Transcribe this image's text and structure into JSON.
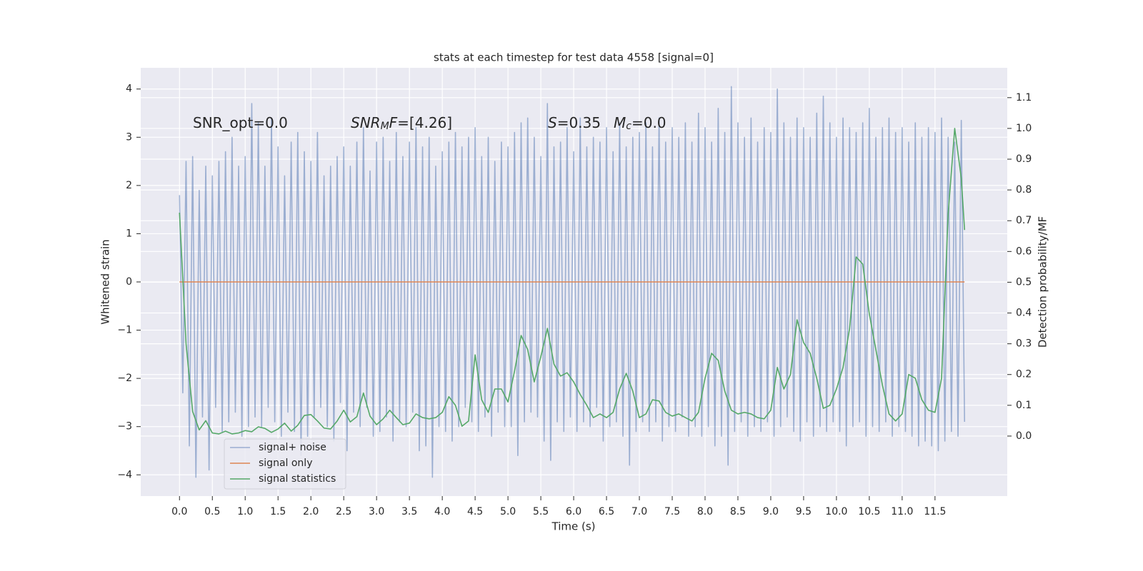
{
  "chart_data": {
    "type": "line",
    "title": "stats at each timestep for test data 4558 [signal=0]",
    "xlabel": "Time (s)",
    "ylabel": "Whitened strain",
    "y2label": "Detection probability/MF",
    "xlim": [
      -0.59,
      12.6
    ],
    "ylim": [
      -4.44,
      4.44
    ],
    "y2lim": [
      -0.195,
      1.197
    ],
    "xticks": [
      {
        "value": 0,
        "label": "0.0"
      },
      0.5,
      {
        "value": 1,
        "label": "1.0"
      },
      1.5,
      {
        "value": 2,
        "label": "2.0"
      },
      2.5,
      {
        "value": 3,
        "label": "3.0"
      },
      3.5,
      {
        "value": 4,
        "label": "4.0"
      },
      4.5,
      {
        "value": 5,
        "label": "5.0"
      },
      5.5,
      {
        "value": 6,
        "label": "6.0"
      },
      6.5,
      {
        "value": 7,
        "label": "7.0"
      },
      7.5,
      {
        "value": 8,
        "label": "8.0"
      },
      8.5,
      {
        "value": 9,
        "label": "9.0"
      },
      9.5,
      {
        "value": 10,
        "label": "10.0"
      },
      10.5,
      {
        "value": 11,
        "label": "11.0"
      },
      11.5
    ],
    "yticks": [
      {
        "value": -4,
        "label": "−4"
      },
      {
        "value": -3,
        "label": "−3"
      },
      {
        "value": -2,
        "label": "−2"
      },
      {
        "value": -1,
        "label": "−1"
      },
      0,
      1,
      2,
      3,
      4
    ],
    "y2ticks": [
      {
        "value": 0,
        "label": "0.0"
      },
      0.1,
      0.2,
      0.3,
      0.4,
      0.5,
      0.6,
      0.7,
      0.8,
      0.9,
      {
        "value": 1,
        "label": "1.0"
      },
      1.1
    ],
    "grid": true,
    "legend": "lower left",
    "annotations": [
      {
        "runs": [
          {
            "text": "SNR_opt=0.0"
          }
        ]
      },
      {
        "runs": [
          {
            "text": "SNR",
            "italic": true
          },
          {
            "text": "M",
            "italic": true,
            "sub": true
          },
          {
            "text": "F",
            "italic": true
          },
          {
            "text": "=[4.26]"
          }
        ]
      },
      {
        "runs": [
          {
            "text": "S",
            "italic": true
          },
          {
            "text": "=0.35"
          }
        ]
      },
      {
        "runs": [
          {
            "text": "M",
            "italic": true
          },
          {
            "text": "c",
            "italic": true,
            "sub": true
          },
          {
            "text": "=0.0"
          }
        ]
      }
    ],
    "series": [
      {
        "name": "signal+ noise",
        "color": "#4c72b0",
        "opacity": 0.5,
        "x": [
          0,
          0.05,
          0.1,
          0.15,
          0.2,
          0.25,
          0.3,
          0.35,
          0.4,
          0.45,
          0.5,
          0.55,
          0.6,
          0.65,
          0.7,
          0.75,
          0.8,
          0.85,
          0.9,
          0.95,
          1,
          1.05,
          1.1,
          1.15,
          1.2,
          1.25,
          1.3,
          1.35,
          1.4,
          1.45,
          1.5,
          1.55,
          1.6,
          1.65,
          1.7,
          1.75,
          1.8,
          1.85,
          1.9,
          1.95,
          2,
          2.05,
          2.1,
          2.15,
          2.2,
          2.25,
          2.3,
          2.35,
          2.4,
          2.45,
          2.5,
          2.55,
          2.6,
          2.65,
          2.7,
          2.75,
          2.8,
          2.85,
          2.9,
          2.95,
          3,
          3.05,
          3.1,
          3.15,
          3.2,
          3.25,
          3.3,
          3.35,
          3.4,
          3.45,
          3.5,
          3.55,
          3.6,
          3.65,
          3.7,
          3.75,
          3.8,
          3.85,
          3.9,
          3.95,
          4,
          4.05,
          4.1,
          4.15,
          4.2,
          4.25,
          4.3,
          4.35,
          4.4,
          4.45,
          4.5,
          4.55,
          4.6,
          4.65,
          4.7,
          4.75,
          4.8,
          4.85,
          4.9,
          4.95,
          5,
          5.05,
          5.1,
          5.15,
          5.2,
          5.25,
          5.3,
          5.35,
          5.4,
          5.45,
          5.5,
          5.55,
          5.6,
          5.65,
          5.7,
          5.75,
          5.8,
          5.85,
          5.9,
          5.95,
          6,
          6.05,
          6.1,
          6.15,
          6.2,
          6.25,
          6.3,
          6.35,
          6.4,
          6.45,
          6.5,
          6.55,
          6.6,
          6.65,
          6.7,
          6.75,
          6.8,
          6.85,
          6.9,
          6.95,
          7,
          7.05,
          7.1,
          7.15,
          7.2,
          7.25,
          7.3,
          7.35,
          7.4,
          7.45,
          7.5,
          7.55,
          7.6,
          7.65,
          7.7,
          7.75,
          7.8,
          7.85,
          7.9,
          7.95,
          8,
          8.05,
          8.1,
          8.15,
          8.2,
          8.25,
          8.3,
          8.35,
          8.4,
          8.45,
          8.5,
          8.55,
          8.6,
          8.65,
          8.7,
          8.75,
          8.8,
          8.85,
          8.9,
          8.95,
          9,
          9.05,
          9.1,
          9.15,
          9.2,
          9.25,
          9.3,
          9.35,
          9.4,
          9.45,
          9.5,
          9.55,
          9.6,
          9.65,
          9.7,
          9.75,
          9.8,
          9.85,
          9.9,
          9.95,
          10,
          10.05,
          10.1,
          10.15,
          10.2,
          10.25,
          10.3,
          10.35,
          10.4,
          10.45,
          10.5,
          10.55,
          10.6,
          10.65,
          10.7,
          10.75,
          10.8,
          10.85,
          10.9,
          10.95,
          11,
          11.05,
          11.1,
          11.15,
          11.2,
          11.25,
          11.3,
          11.35,
          11.4,
          11.45,
          11.5,
          11.55,
          11.6,
          11.65,
          11.7,
          11.75,
          11.8,
          11.85,
          11.9,
          11.95
        ],
        "values": [
          1.8,
          -2.3,
          2.5,
          -3.4,
          2.6,
          -4.05,
          1.9,
          -2.8,
          2.4,
          -3.9,
          2.2,
          -2.6,
          2.5,
          -3.1,
          2.7,
          -2.9,
          3.0,
          -2.7,
          2.4,
          -3.2,
          2.6,
          -3.0,
          3.7,
          -2.8,
          3.3,
          -3.0,
          2.4,
          -2.6,
          3.4,
          -2.9,
          2.8,
          -3.2,
          2.2,
          -2.7,
          2.9,
          -3.1,
          3.1,
          -3.6,
          2.7,
          -3.2,
          2.5,
          -2.8,
          3.1,
          -2.6,
          2.2,
          -3.0,
          2.4,
          -3.3,
          2.6,
          -2.5,
          2.8,
          -3.5,
          2.4,
          -2.7,
          2.9,
          -3.0,
          3.2,
          -2.6,
          2.3,
          -3.2,
          2.9,
          -3.1,
          3.0,
          -2.8,
          2.5,
          -3.3,
          3.1,
          -2.9,
          2.6,
          -3.0,
          2.9,
          -2.7,
          3.2,
          -3.5,
          2.8,
          -3.4,
          3.0,
          -4.05,
          2.4,
          -3.0,
          2.7,
          -3.1,
          2.9,
          -3.3,
          3.1,
          -3.0,
          2.8,
          -2.6,
          3.0,
          -2.9,
          3.2,
          -3.1,
          2.6,
          -2.8,
          3.0,
          -3.2,
          2.5,
          -2.7,
          2.9,
          -3.0,
          2.8,
          -3.0,
          3.1,
          -3.6,
          3.3,
          -2.9,
          3.4,
          -2.7,
          3.0,
          -2.8,
          2.6,
          -3.3,
          3.7,
          -3.7,
          2.8,
          -2.9,
          2.9,
          -3.1,
          3.2,
          -2.8,
          2.7,
          -3.1,
          3.4,
          -2.9,
          2.8,
          -3.0,
          3.0,
          -2.6,
          2.9,
          -3.3,
          3.2,
          -3.0,
          2.7,
          -2.9,
          3.3,
          -3.2,
          2.8,
          -3.8,
          3.0,
          -3.1,
          3.1,
          -2.9,
          3.3,
          -3.1,
          2.8,
          -2.9,
          3.4,
          -3.3,
          2.9,
          -3.0,
          3.2,
          -3.1,
          3.0,
          -2.8,
          3.3,
          -3.2,
          2.9,
          -3.0,
          3.5,
          -3.2,
          3.2,
          -3.0,
          2.9,
          -3.4,
          3.6,
          -3.2,
          3.1,
          -3.8,
          4.05,
          -3.1,
          3.3,
          -2.9,
          3.0,
          -3.2,
          3.4,
          -3.0,
          2.9,
          -3.1,
          3.2,
          -2.9,
          3.1,
          -3.2,
          4.0,
          -3.0,
          3.3,
          -2.8,
          3.0,
          -3.1,
          3.4,
          -3.3,
          3.2,
          -2.9,
          3.0,
          -3.2,
          3.5,
          -3.0,
          3.85,
          -3.1,
          3.3,
          -2.9,
          3.0,
          -3.1,
          3.4,
          -3.4,
          3.2,
          -3.0,
          3.1,
          -2.9,
          3.3,
          -3.2,
          3.6,
          -3.0,
          3.0,
          -3.1,
          3.2,
          -2.9,
          3.4,
          -3.2,
          3.1,
          -3.0,
          3.2,
          -3.1,
          2.9,
          -3.2,
          3.3,
          -3.4,
          3.0,
          -3.3,
          3.2,
          -3.4,
          3.1,
          -3.5,
          3.4,
          -3.3,
          3.0,
          -3.1,
          2.9,
          -3.2,
          3.35,
          -2.9
        ]
      },
      {
        "name": "signal only",
        "color": "#dd8452",
        "opacity": 1,
        "x": [
          0,
          11.95
        ],
        "values": [
          0,
          0
        ]
      },
      {
        "name": "signal statistics",
        "color": "#55a868",
        "opacity": 1,
        "axis": "y2",
        "x": [
          0,
          0.1,
          0.2,
          0.3,
          0.4,
          0.5,
          0.6,
          0.7,
          0.8,
          0.9,
          1,
          1.1,
          1.2,
          1.3,
          1.4,
          1.5,
          1.6,
          1.7,
          1.8,
          1.9,
          2,
          2.1,
          2.2,
          2.3,
          2.4,
          2.5,
          2.6,
          2.7,
          2.8,
          2.9,
          3,
          3.1,
          3.2,
          3.3,
          3.4,
          3.5,
          3.6,
          3.7,
          3.8,
          3.9,
          4,
          4.1,
          4.2,
          4.3,
          4.4,
          4.5,
          4.6,
          4.7,
          4.8,
          4.9,
          5,
          5.1,
          5.2,
          5.3,
          5.4,
          5.5,
          5.6,
          5.7,
          5.8,
          5.9,
          6,
          6.1,
          6.2,
          6.3,
          6.4,
          6.5,
          6.6,
          6.7,
          6.8,
          6.9,
          7,
          7.1,
          7.2,
          7.3,
          7.4,
          7.5,
          7.6,
          7.7,
          7.8,
          7.9,
          8,
          8.1,
          8.2,
          8.3,
          8.4,
          8.5,
          8.6,
          8.7,
          8.8,
          8.9,
          9,
          9.1,
          9.2,
          9.3,
          9.4,
          9.5,
          9.6,
          9.7,
          9.8,
          9.9,
          10,
          10.1,
          10.2,
          10.3,
          10.4,
          10.5,
          10.6,
          10.7,
          10.8,
          10.9,
          11,
          11.1,
          11.2,
          11.3,
          11.4,
          11.5,
          11.6,
          11.7,
          11.8,
          11.9,
          11.95
        ],
        "values": [
          0.726,
          0.3,
          0.08,
          0.02,
          0.05,
          0.01,
          0.007,
          0.016,
          0.007,
          0.01,
          0.018,
          0.014,
          0.03,
          0.025,
          0.012,
          0.023,
          0.042,
          0.016,
          0.035,
          0.067,
          0.07,
          0.049,
          0.026,
          0.023,
          0.049,
          0.084,
          0.046,
          0.063,
          0.14,
          0.065,
          0.037,
          0.056,
          0.084,
          0.06,
          0.037,
          0.042,
          0.072,
          0.06,
          0.056,
          0.06,
          0.077,
          0.128,
          0.1,
          0.032,
          0.049,
          0.264,
          0.118,
          0.077,
          0.153,
          0.153,
          0.111,
          0.211,
          0.327,
          0.281,
          0.176,
          0.258,
          0.35,
          0.234,
          0.195,
          0.206,
          0.176,
          0.135,
          0.1,
          0.06,
          0.072,
          0.06,
          0.077,
          0.153,
          0.204,
          0.146,
          0.06,
          0.072,
          0.118,
          0.114,
          0.077,
          0.065,
          0.072,
          0.06,
          0.049,
          0.077,
          0.188,
          0.269,
          0.246,
          0.146,
          0.084,
          0.072,
          0.077,
          0.072,
          0.06,
          0.056,
          0.084,
          0.223,
          0.153,
          0.2,
          0.378,
          0.304,
          0.269,
          0.188,
          0.09,
          0.1,
          0.153,
          0.223,
          0.35,
          0.582,
          0.559,
          0.397,
          0.281,
          0.165,
          0.072,
          0.049,
          0.072,
          0.2,
          0.188,
          0.118,
          0.084,
          0.077,
          0.188,
          0.722,
          1.0,
          0.838,
          0.67
        ]
      }
    ]
  }
}
